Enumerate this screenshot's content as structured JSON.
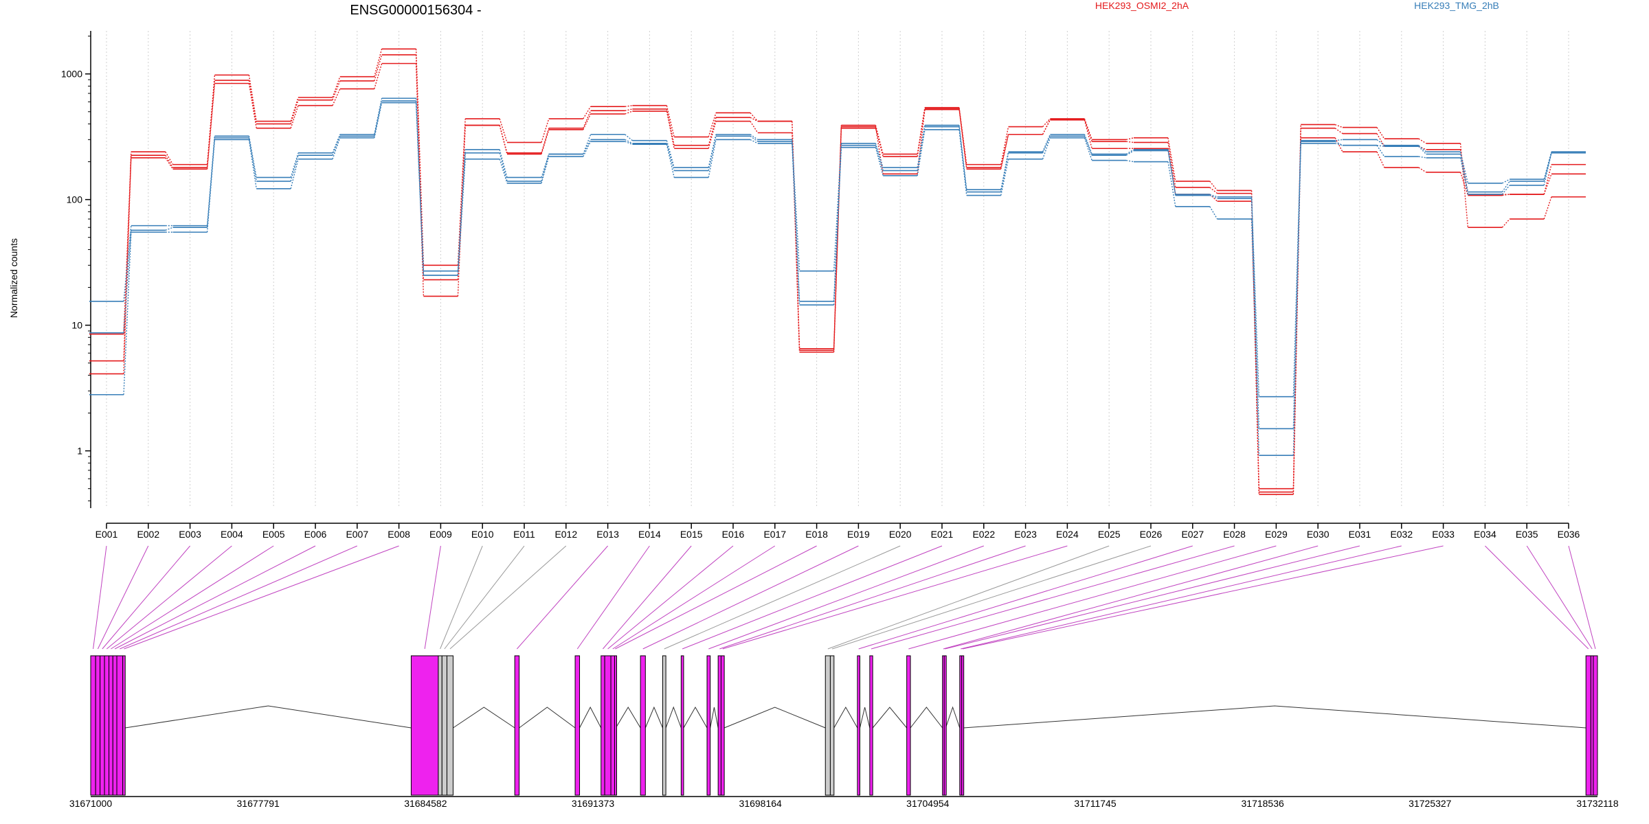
{
  "chart_data": {
    "type": "line",
    "title": "ENSG00000156304 -",
    "ylabel": "Normalized counts",
    "y_scale": "log",
    "ylim": [
      0.35,
      2200
    ],
    "y_ticks": [
      1,
      10,
      100,
      1000
    ],
    "y_tick_labels": [
      "1",
      "10",
      "100",
      "1000"
    ],
    "grid": "vertical dotted lines at each exon",
    "legend_position": "top",
    "categories": [
      "E001",
      "E002",
      "E003",
      "E004",
      "E005",
      "E006",
      "E007",
      "E008",
      "E009",
      "E010",
      "E011",
      "E012",
      "E013",
      "E014",
      "E015",
      "E016",
      "E017",
      "E018",
      "E019",
      "E020",
      "E021",
      "E022",
      "E023",
      "E024",
      "E025",
      "E026",
      "E027",
      "E028",
      "E029",
      "E030",
      "E031",
      "E032",
      "E033",
      "E034",
      "E035",
      "E036"
    ],
    "series": [
      {
        "name": "HEK293_OSMI2_2hA",
        "group": "HEK293_OSMI2_2hA",
        "color": "#e41a1c",
        "values": [
          5.2,
          240,
          190,
          980,
          420,
          650,
          950,
          1580,
          30,
          440,
          285,
          440,
          550,
          560,
          315,
          490,
          420,
          6.5,
          390,
          230,
          540,
          190,
          380,
          440,
          300,
          310,
          140,
          118,
          0.47,
          395,
          375,
          305,
          280,
          60,
          70,
          105
        ]
      },
      {
        "name": "HEK293_OSMI2_2hA",
        "group": "HEK293_OSMI2_2hA",
        "color": "#e41a1c",
        "values": [
          4.1,
          225,
          180,
          890,
          400,
          620,
          880,
          1420,
          23,
          390,
          235,
          370,
          510,
          525,
          270,
          450,
          420,
          6.1,
          370,
          220,
          530,
          175,
          330,
          435,
          290,
          285,
          125,
          112,
          0.5,
          370,
          335,
          265,
          250,
          110,
          110,
          160
        ]
      },
      {
        "name": "HEK293_OSMI2_2hA",
        "group": "HEK293_OSMI2_2hA",
        "color": "#e41a1c",
        "values": [
          8.5,
          215,
          175,
          840,
          370,
          560,
          760,
          1210,
          17,
          390,
          230,
          360,
          480,
          505,
          255,
          420,
          340,
          6.3,
          380,
          160,
          520,
          180,
          330,
          430,
          255,
          255,
          110,
          97,
          0.45,
          310,
          240,
          180,
          165,
          108,
          110,
          190
        ]
      },
      {
        "name": "HEK293_TMG_2hB",
        "group": "HEK293_TMG_2hB",
        "color": "#377eb8",
        "values": [
          15.5,
          62,
          62,
          320,
          150,
          235,
          330,
          640,
          27,
          250,
          150,
          230,
          330,
          295,
          180,
          330,
          300,
          27,
          280,
          180,
          390,
          120,
          240,
          330,
          230,
          250,
          110,
          105,
          2.7,
          295,
          300,
          270,
          240,
          135,
          145,
          240
        ]
      },
      {
        "name": "HEK293_TMG_2hB",
        "group": "HEK293_TMG_2hB",
        "color": "#377eb8",
        "values": [
          8.7,
          57,
          60,
          310,
          140,
          225,
          320,
          610,
          25,
          235,
          140,
          230,
          300,
          280,
          170,
          320,
          290,
          15.5,
          270,
          170,
          380,
          115,
          235,
          320,
          225,
          245,
          108,
          102,
          1.5,
          290,
          270,
          265,
          230,
          115,
          140,
          235
        ]
      },
      {
        "name": "HEK293_TMG_2hB",
        "group": "HEK293_TMG_2hB",
        "color": "#377eb8",
        "values": [
          2.8,
          55,
          55,
          300,
          122,
          210,
          310,
          590,
          25,
          210,
          135,
          220,
          290,
          275,
          150,
          300,
          280,
          14.5,
          260,
          155,
          360,
          108,
          210,
          310,
          205,
          200,
          88,
          70,
          0.92,
          280,
          270,
          220,
          215,
          110,
          130,
          235
        ]
      }
    ],
    "legend": [
      "HEK293_OSMI2_2hA",
      "HEK293_TMG_2hB"
    ],
    "gene_model": {
      "coord_range": [
        31671000,
        31732118
      ],
      "coord_ticks": [
        31671000,
        31677791,
        31684582,
        31691373,
        31698164,
        31704954,
        31711745,
        31718536,
        31725327,
        31732118
      ],
      "coord_tick_labels": [
        "31671000",
        "31677791",
        "31684582",
        "31691373",
        "31698164",
        "31704954",
        "31711745",
        "31718536",
        "31725327",
        "31732118"
      ],
      "exons": [
        {
          "id": "E001",
          "start": 31671000,
          "end": 31671200,
          "color": "#ee22ee"
        },
        {
          "id": "E002",
          "start": 31671200,
          "end": 31671380,
          "color": "#ee22ee"
        },
        {
          "id": "E003",
          "start": 31671380,
          "end": 31671560,
          "color": "#ee22ee"
        },
        {
          "id": "E004",
          "start": 31671560,
          "end": 31671740,
          "color": "#ee22ee"
        },
        {
          "id": "E005",
          "start": 31671740,
          "end": 31671900,
          "color": "#ee22ee"
        },
        {
          "id": "E006",
          "start": 31671900,
          "end": 31672060,
          "color": "#ee22ee"
        },
        {
          "id": "E007",
          "start": 31672060,
          "end": 31672300,
          "color": "#ee22ee"
        },
        {
          "id": "E008",
          "start": 31672300,
          "end": 31672400,
          "color": "#ee22ee"
        },
        {
          "id": "E009",
          "start": 31684000,
          "end": 31685100,
          "color": "#ee22ee"
        },
        {
          "id": "E010",
          "start": 31685100,
          "end": 31685250,
          "color": "#cccccc"
        },
        {
          "id": "E011",
          "start": 31685250,
          "end": 31685450,
          "color": "#cccccc"
        },
        {
          "id": "E012",
          "start": 31685450,
          "end": 31685700,
          "color": "#cccccc"
        },
        {
          "id": "E013",
          "start": 31688200,
          "end": 31688380,
          "color": "#ee22ee"
        },
        {
          "id": "E014",
          "start": 31690650,
          "end": 31690830,
          "color": "#ee22ee"
        },
        {
          "id": "E015",
          "start": 31691700,
          "end": 31691850,
          "color": "#ee22ee"
        },
        {
          "id": "E016",
          "start": 31691850,
          "end": 31692100,
          "color": "#ee22ee"
        },
        {
          "id": "E017",
          "start": 31692100,
          "end": 31692250,
          "color": "#ee22ee"
        },
        {
          "id": "E018",
          "start": 31692250,
          "end": 31692300,
          "color": "#ee22ee"
        },
        {
          "id": "E019",
          "start": 31693300,
          "end": 31693500,
          "color": "#ee22ee"
        },
        {
          "id": "E020",
          "start": 31694200,
          "end": 31694330,
          "color": "#cccccc"
        },
        {
          "id": "E021",
          "start": 31694950,
          "end": 31695050,
          "color": "#ee22ee"
        },
        {
          "id": "E022",
          "start": 31696000,
          "end": 31696130,
          "color": "#ee22ee"
        },
        {
          "id": "E023",
          "start": 31696450,
          "end": 31696570,
          "color": "#ee22ee"
        },
        {
          "id": "E024",
          "start": 31696570,
          "end": 31696700,
          "color": "#ee22ee"
        },
        {
          "id": "E025",
          "start": 31700800,
          "end": 31701000,
          "color": "#cccccc"
        },
        {
          "id": "E026",
          "start": 31701000,
          "end": 31701150,
          "color": "#cccccc"
        },
        {
          "id": "E027",
          "start": 31702100,
          "end": 31702200,
          "color": "#ee22ee"
        },
        {
          "id": "E028",
          "start": 31702600,
          "end": 31702720,
          "color": "#ee22ee"
        },
        {
          "id": "E029",
          "start": 31704100,
          "end": 31704250,
          "color": "#ee22ee"
        },
        {
          "id": "E030",
          "start": 31705550,
          "end": 31705620,
          "color": "#ee22ee"
        },
        {
          "id": "E031",
          "start": 31705620,
          "end": 31705680,
          "color": "#ee22ee"
        },
        {
          "id": "E032",
          "start": 31706250,
          "end": 31706330,
          "color": "#ee22ee"
        },
        {
          "id": "E033",
          "start": 31706330,
          "end": 31706400,
          "color": "#ee22ee"
        },
        {
          "id": "E034",
          "start": 31731650,
          "end": 31731850,
          "color": "#ee22ee"
        },
        {
          "id": "E035",
          "start": 31731850,
          "end": 31731950,
          "color": "#ee22ee"
        },
        {
          "id": "E036",
          "start": 31731950,
          "end": 31732118,
          "color": "#ee22ee"
        }
      ]
    }
  }
}
